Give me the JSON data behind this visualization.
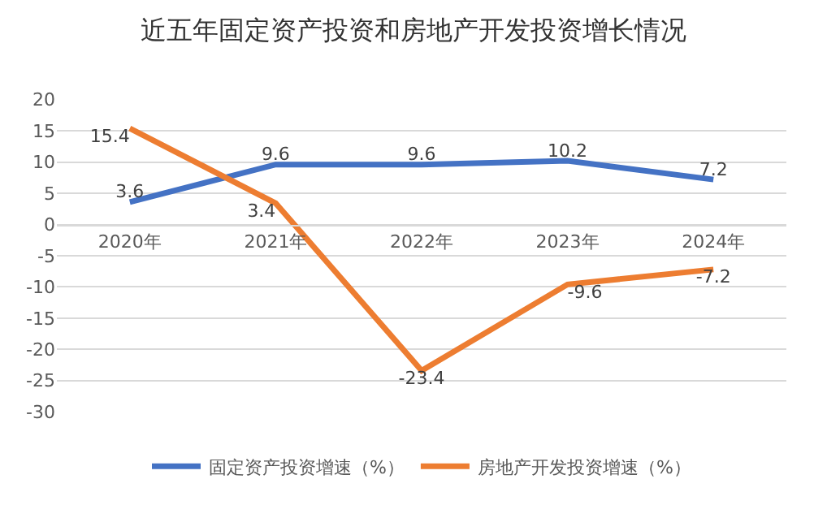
{
  "chart_data": {
    "type": "line",
    "title": "近五年固定资产投资和房地产开发投资增长情况",
    "categories": [
      "2020年",
      "2021年",
      "2022年",
      "2023年",
      "2024年"
    ],
    "series": [
      {
        "name": "固定资产投资增速（%）",
        "color": "#4472c4",
        "values": [
          3.6,
          9.6,
          9.6,
          10.2,
          7.2
        ]
      },
      {
        "name": "房地产开发投资增速（%）",
        "color": "#ed7d31",
        "values": [
          15.4,
          3.4,
          -23.4,
          -9.6,
          -7.2
        ]
      }
    ],
    "ylim": [
      -30,
      20
    ],
    "yticks": [
      -30,
      -25,
      -20,
      -15,
      -10,
      -5,
      0,
      5,
      10,
      15,
      20
    ],
    "grid": "y",
    "legend": "bottom",
    "data_labels": true,
    "marker": "none",
    "line_style": "solid"
  }
}
